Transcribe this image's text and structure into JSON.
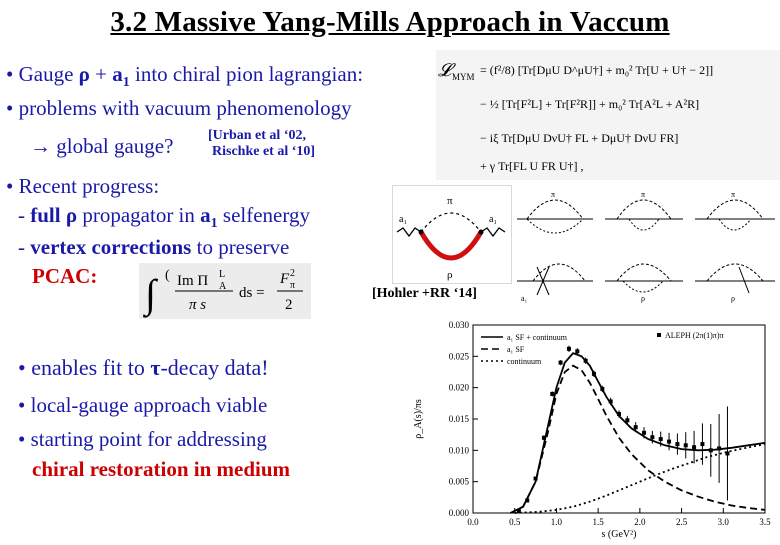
{
  "title": "3.2 Massive Yang-Mills Approach in Vaccum",
  "b1": {
    "bullet": "•",
    "pre": " Gauge ",
    "rho": "ρ",
    "plus": " + ",
    "a": "a",
    "sub": "1",
    "post": " into chiral pion lagrangian:"
  },
  "b2": {
    "bullet": "•",
    "text": " problems with vacuum phenomenology"
  },
  "b3": {
    "arrow": "→ global gauge?",
    "ref": "[Urban et al ‘02,",
    "ref2": "Rischke et al ‘10]"
  },
  "b4": {
    "bullet": "•",
    "text": " Recent progress:"
  },
  "b5": {
    "dash": "- ",
    "full": "full",
    "rho": " ρ",
    "mid": " propagator in ",
    "a": "a",
    "sub": "1",
    "post": " selfenergy"
  },
  "b6": {
    "dash": "- ",
    "bold": "vertex corrections",
    "post": " to preserve"
  },
  "b7": {
    "text": "PCAC:"
  },
  "ref_hohler": "[Hohler +RR ‘14]",
  "b8": {
    "bullet": "•",
    "pre": " enables fit to ",
    "tau": "τ",
    "post": "-decay data!"
  },
  "b9": {
    "bullet": "•",
    "text": " local-gauge approach viable"
  },
  "b10": {
    "bullet": "•",
    "text": " starting point for  addressing"
  },
  "b11": {
    "text": "chiral restoration in medium"
  },
  "lagrangian": {
    "lhs": "𝓛",
    "lhs_sub": "MYM",
    "r1": "= (f²/8) [Tr[DμU D^μU†] + m₀² Tr[U + U† − 2]]",
    "r2": "− ½ [Tr[F²L] + Tr[F²R]] + m₀² Tr[A²L + A²R]",
    "r3": "− iξ Tr[DμU DνU† FL + DμU† DνU FR]",
    "r4": "+ γ Tr[FL U FR U†] ,"
  },
  "pcac": {
    "int": "∫",
    "num": "Im Π",
    "num_sup": "L",
    "num_sub": "A",
    "den": "π s",
    "eq": "ds =",
    "rhs_num": "F",
    "rhs_sup": "2",
    "rhs_sub": "π",
    "rhs_den": "2"
  },
  "diagram_center": {
    "pi": "π",
    "rho": "ρ",
    "a_in": "a₁",
    "a_out": "a₁"
  },
  "diagram_right": {
    "pi": "π",
    "rho": "ρ",
    "a": "a₁"
  },
  "chart_data": {
    "type": "line",
    "title": "",
    "xlabel": "s (GeV²)",
    "ylabel": "ρ_A(s)/πs",
    "xlim": [
      0.0,
      3.5
    ],
    "ylim": [
      0.0,
      0.03
    ],
    "xticks": [
      "0.0",
      "0.5",
      "1.0",
      "1.5",
      "2.0",
      "2.5",
      "3.0",
      "3.5"
    ],
    "yticks": [
      "0.000",
      "0.005",
      "0.010",
      "0.015",
      "0.020",
      "0.025",
      "0.030"
    ],
    "legend": [
      {
        "name": "a₁ SF + continuum",
        "style": "solid"
      },
      {
        "name": "a₁ SF",
        "style": "dashed"
      },
      {
        "name": "continuum",
        "style": "dotted"
      },
      {
        "name": "ALEPH (2π(1)π)π",
        "style": "marker"
      }
    ],
    "series": [
      {
        "name": "a₁ SF + continuum",
        "style": "solid",
        "x": [
          0.45,
          0.6,
          0.75,
          0.9,
          1.0,
          1.1,
          1.2,
          1.3,
          1.4,
          1.5,
          1.6,
          1.75,
          1.9,
          2.1,
          2.3,
          2.5,
          2.7,
          2.9,
          3.1,
          3.3,
          3.5
        ],
        "y": [
          0.0,
          0.001,
          0.005,
          0.014,
          0.02,
          0.024,
          0.0255,
          0.025,
          0.0235,
          0.021,
          0.0185,
          0.0155,
          0.0135,
          0.0118,
          0.0108,
          0.0102,
          0.01,
          0.0101,
          0.0104,
          0.0108,
          0.0112
        ]
      },
      {
        "name": "a₁ SF",
        "style": "dashed",
        "x": [
          0.45,
          0.6,
          0.75,
          0.9,
          1.0,
          1.1,
          1.2,
          1.3,
          1.4,
          1.5,
          1.6,
          1.75,
          1.9,
          2.1,
          2.3,
          2.5,
          2.7,
          2.9,
          3.1,
          3.3,
          3.5
        ],
        "y": [
          0.0,
          0.001,
          0.005,
          0.013,
          0.019,
          0.0225,
          0.0235,
          0.0228,
          0.0208,
          0.0182,
          0.0155,
          0.012,
          0.0094,
          0.0068,
          0.005,
          0.0036,
          0.0026,
          0.0018,
          0.0012,
          0.0008,
          0.0005
        ]
      },
      {
        "name": "continuum",
        "style": "dotted",
        "x": [
          0.5,
          0.8,
          1.0,
          1.2,
          1.4,
          1.6,
          1.8,
          2.0,
          2.2,
          2.4,
          2.6,
          2.8,
          3.0,
          3.2,
          3.5
        ],
        "y": [
          0.0,
          0.0002,
          0.0005,
          0.001,
          0.0018,
          0.0028,
          0.0039,
          0.005,
          0.0061,
          0.0071,
          0.008,
          0.0089,
          0.0096,
          0.0102,
          0.011
        ]
      }
    ],
    "aleph": {
      "x": [
        0.55,
        0.65,
        0.75,
        0.85,
        0.95,
        1.05,
        1.15,
        1.25,
        1.35,
        1.45,
        1.55,
        1.65,
        1.75,
        1.85,
        1.95,
        2.05,
        2.15,
        2.25,
        2.35,
        2.45,
        2.55,
        2.65,
        2.75,
        2.85,
        2.95,
        3.05
      ],
      "y": [
        0.0003,
        0.002,
        0.0055,
        0.012,
        0.019,
        0.024,
        0.0262,
        0.0258,
        0.0243,
        0.0222,
        0.0198,
        0.0178,
        0.0158,
        0.0148,
        0.0137,
        0.0128,
        0.0121,
        0.0118,
        0.0114,
        0.011,
        0.0108,
        0.0105,
        0.011,
        0.01,
        0.0103,
        0.0095
      ],
      "err": [
        0.0002,
        0.0003,
        0.0003,
        0.0004,
        0.0004,
        0.0004,
        0.0005,
        0.0005,
        0.0005,
        0.0005,
        0.0005,
        0.0006,
        0.0006,
        0.0007,
        0.0008,
        0.0009,
        0.001,
        0.0012,
        0.0014,
        0.0017,
        0.0021,
        0.0026,
        0.0033,
        0.0042,
        0.0055,
        0.0075
      ]
    }
  }
}
